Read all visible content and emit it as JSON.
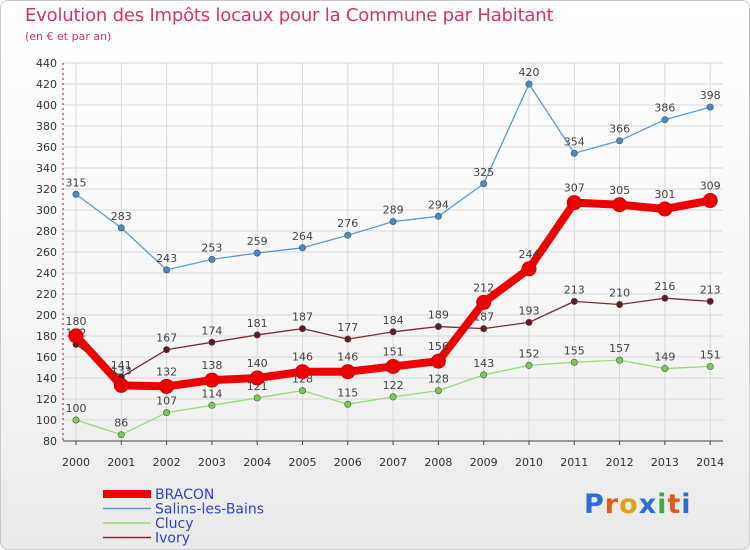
{
  "title": "Evolution des Impôts locaux pour la Commune par Habitant",
  "subtitle": "(en € et par an)",
  "logo": {
    "letters": [
      "P",
      "r",
      "o",
      "x",
      "i",
      "t",
      "i"
    ],
    "colors": [
      "#2a6fd6",
      "#e05a1a",
      "#e0a21a",
      "#2a6fd6",
      "#44a84a",
      "#e05a1a",
      "#2a6fd6"
    ]
  },
  "chart_data": {
    "type": "line",
    "title": "Evolution des Impôts locaux pour la Commune par Habitant",
    "subtitle": "(en € et par an)",
    "x": [
      "2000",
      "2001",
      "2002",
      "2003",
      "2004",
      "2005",
      "2006",
      "2007",
      "2008",
      "2009",
      "2010",
      "2011",
      "2012",
      "2013",
      "2014"
    ],
    "ylim": [
      80,
      440
    ],
    "yticks": [
      80,
      100,
      120,
      140,
      160,
      180,
      200,
      220,
      240,
      260,
      280,
      300,
      320,
      340,
      360,
      380,
      400,
      420,
      440
    ],
    "grid": true,
    "legend_position": "bottom-left",
    "series": [
      {
        "name": "Salins-les-Bains",
        "color": "#5b9bd5",
        "marker": "#4a8ac4",
        "values": [
          315,
          283,
          243,
          253,
          259,
          264,
          276,
          289,
          294,
          325,
          420,
          354,
          366,
          386,
          398
        ],
        "labels": [
          "315",
          "283",
          "243",
          "253",
          "259",
          "264",
          "276",
          "289",
          "294",
          "325",
          "420",
          "354",
          "366",
          "386",
          "398"
        ]
      },
      {
        "name": "Ivory",
        "color": "#7a2e36",
        "marker": "#5e1c24",
        "values": [
          172,
          141,
          167,
          174,
          181,
          187,
          177,
          184,
          189,
          187,
          193,
          213,
          210,
          216,
          213
        ],
        "labels": [
          "172",
          "141",
          "167",
          "174",
          "181",
          "187",
          "177",
          "184",
          "189",
          "187",
          "193",
          "213",
          "210",
          "216",
          "213"
        ]
      },
      {
        "name": "Clucy",
        "color": "#99dd77",
        "marker": "#7cc855",
        "values": [
          100,
          86,
          107,
          114,
          121,
          128,
          115,
          122,
          128,
          143,
          152,
          155,
          157,
          149,
          151
        ],
        "labels": [
          "100",
          "86",
          "107",
          "114",
          "121",
          "128",
          "115",
          "122",
          "128",
          "143",
          "152",
          "155",
          "157",
          "149",
          "151"
        ]
      },
      {
        "name": "BRACON",
        "color": "#ee0000",
        "marker": "#ee0000",
        "values": [
          180,
          133,
          132,
          138,
          140,
          146,
          146,
          151,
          156,
          212,
          244,
          307,
          305,
          301,
          309
        ],
        "labels": [
          "180",
          "133",
          "132",
          "138",
          "140",
          "146",
          "146",
          "151",
          "156",
          "212",
          "244",
          "307",
          "305",
          "301",
          "309"
        ]
      }
    ],
    "legend": [
      {
        "name": "BRACON",
        "color": "#ee0000"
      },
      {
        "name": "Salins-les-Bains",
        "color": "#5b9bd5"
      },
      {
        "name": "Clucy",
        "color": "#99dd77"
      },
      {
        "name": "Ivory",
        "color": "#7a2e36"
      }
    ]
  }
}
